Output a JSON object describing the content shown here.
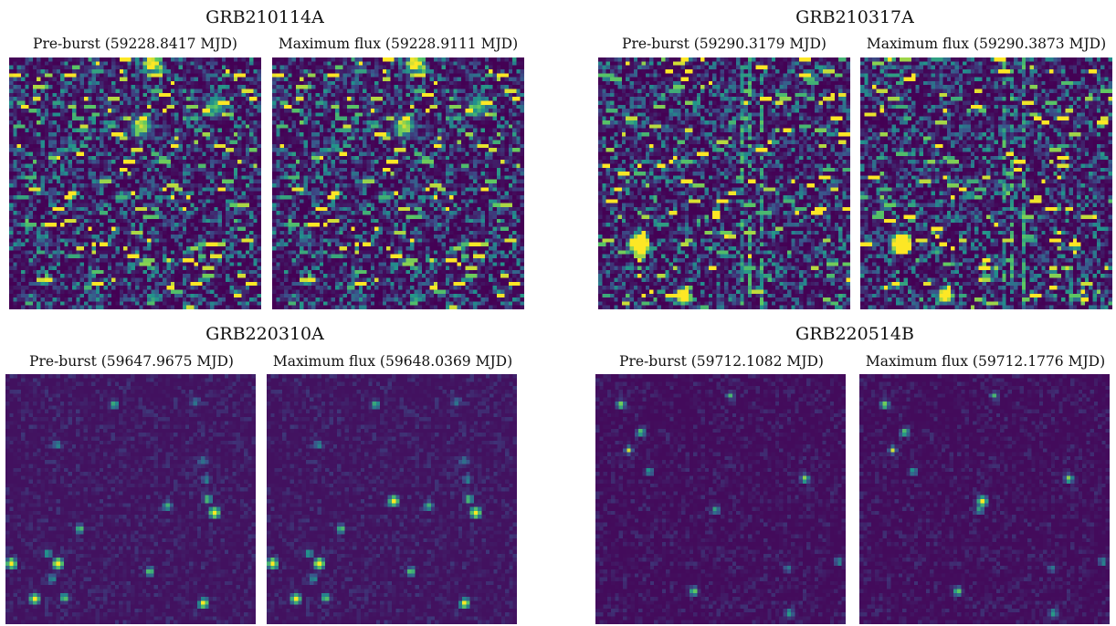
{
  "colormap": {
    "name": "viridis",
    "low": "#440154",
    "mid": "#21918c",
    "high": "#fde725"
  },
  "events": [
    {
      "name": "GRB210114A",
      "panels": [
        {
          "label": "Pre-burst (59228.8417 MJD)",
          "field": "dense-noisy"
        },
        {
          "label": "Maximum flux (59228.9111 MJD)",
          "field": "dense-noisy"
        }
      ]
    },
    {
      "name": "GRB210317A",
      "panels": [
        {
          "label": "Pre-burst (59290.3179 MJD)",
          "field": "dense-streaked"
        },
        {
          "label": "Maximum flux (59290.3873 MJD)",
          "field": "dense-streaked"
        }
      ]
    },
    {
      "name": "GRB220310A",
      "panels": [
        {
          "label": "Pre-burst (59647.9675 MJD)",
          "field": "sparse"
        },
        {
          "label": "Maximum flux (59648.0369 MJD)",
          "field": "sparse-with-transient"
        }
      ]
    },
    {
      "name": "GRB220514B",
      "panels": [
        {
          "label": "Pre-burst (59712.1082 MJD)",
          "field": "sparse"
        },
        {
          "label": "Maximum flux (59712.1776 MJD)",
          "field": "sparse-with-transient"
        }
      ]
    }
  ]
}
